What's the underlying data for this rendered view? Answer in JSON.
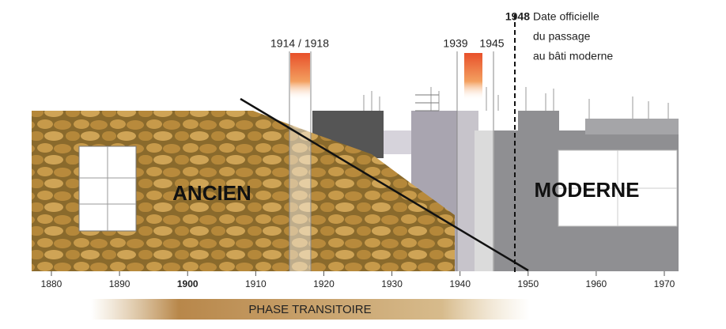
{
  "timeline": {
    "ticks": [
      1880,
      1890,
      1900,
      1910,
      1920,
      1930,
      1940,
      1950,
      1960,
      1970
    ]
  },
  "events": {
    "ww1": "1914 / 1918",
    "ww2_start": "1939",
    "ww2_end": "1945",
    "official_year": "1948",
    "official_note": [
      "Date officielle",
      "du passage",
      "au bâti moderne"
    ]
  },
  "labels": {
    "old": "ANCIEN",
    "modern": "MODERNE",
    "phase": "PHASE TRANSITOIRE"
  }
}
